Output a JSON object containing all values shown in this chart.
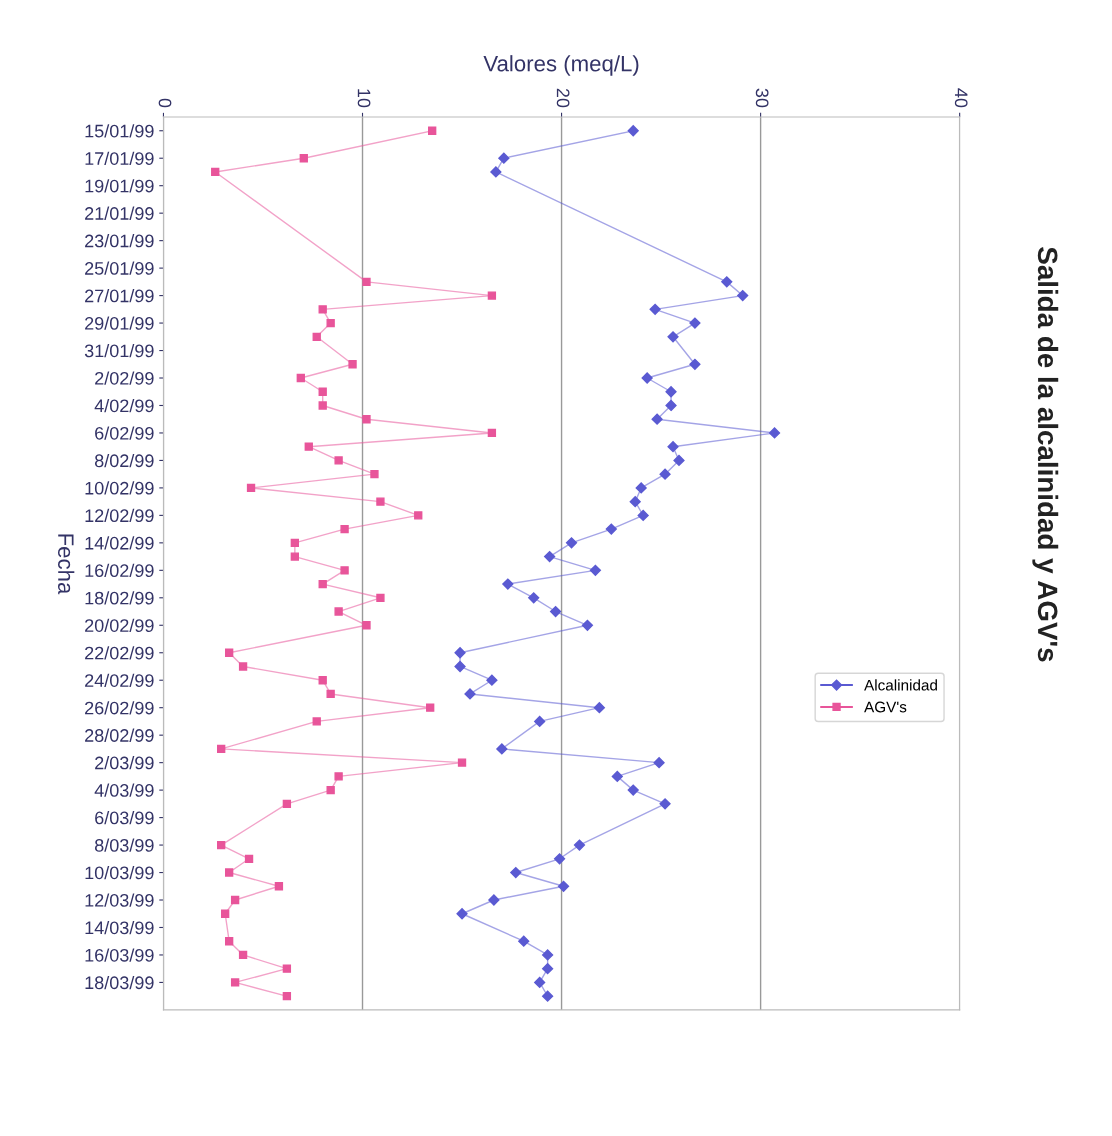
{
  "chart_data": {
    "type": "line",
    "orientation": "horizontal",
    "title": "Salida de la alcalinidad y AGV's",
    "xlabel": "Valores (meq/L)",
    "ylabel": "Fecha",
    "x": [
      "1999-01-15",
      "1999-01-17",
      "1999-01-18",
      "1999-01-26",
      "1999-01-27",
      "1999-01-28",
      "1999-01-29",
      "1999-01-30",
      "1999-02-01",
      "1999-02-02",
      "1999-02-03",
      "1999-02-04",
      "1999-02-05",
      "1999-02-06",
      "1999-02-07",
      "1999-02-08",
      "1999-02-09",
      "1999-02-10",
      "1999-02-11",
      "1999-02-12",
      "1999-02-13",
      "1999-02-14",
      "1999-02-15",
      "1999-02-16",
      "1999-02-17",
      "1999-02-18",
      "1999-02-19",
      "1999-02-20",
      "1999-02-22",
      "1999-02-23",
      "1999-02-24",
      "1999-02-25",
      "1999-02-26",
      "1999-02-27",
      "1999-03-01",
      "1999-03-02",
      "1999-03-03",
      "1999-03-04",
      "1999-03-05",
      "1999-03-08",
      "1999-03-09",
      "1999-03-10",
      "1999-03-11",
      "1999-03-12",
      "1999-03-13",
      "1999-03-15",
      "1999-03-16",
      "1999-03-17",
      "1999-03-18",
      "1999-03-19"
    ],
    "series": [
      {
        "name": "Alcalinidad",
        "color": "#5a5ad2",
        "marker": "diamond",
        "values": [
          23.6,
          17.1,
          16.7,
          28.3,
          29.1,
          24.7,
          26.7,
          25.6,
          26.7,
          24.3,
          25.5,
          25.5,
          24.8,
          30.7,
          25.6,
          25.9,
          25.2,
          24.0,
          23.7,
          24.1,
          22.5,
          20.5,
          19.4,
          21.7,
          17.3,
          18.6,
          19.7,
          21.3,
          14.9,
          14.9,
          16.5,
          15.4,
          21.9,
          18.9,
          17.0,
          24.9,
          22.8,
          23.6,
          25.2,
          20.9,
          19.9,
          17.7,
          20.1,
          16.6,
          15.0,
          18.1,
          19.3,
          19.3,
          18.9,
          19.3
        ]
      },
      {
        "name": "AGV's",
        "color": "#e8559a",
        "marker": "square",
        "values": [
          13.5,
          7.05,
          2.6,
          10.2,
          16.5,
          8.0,
          8.4,
          7.7,
          9.5,
          6.9,
          8.0,
          8.0,
          10.2,
          16.5,
          7.3,
          8.8,
          10.6,
          4.4,
          10.9,
          12.8,
          9.1,
          6.6,
          6.6,
          9.1,
          8.0,
          10.9,
          8.8,
          10.2,
          3.3,
          4.0,
          8.0,
          8.4,
          13.4,
          7.7,
          2.9,
          15.0,
          8.8,
          8.4,
          6.2,
          2.9,
          4.3,
          3.3,
          5.8,
          3.6,
          3.1,
          3.3,
          4.0,
          6.2,
          3.6,
          6.2
        ]
      }
    ],
    "xlim": [
      0,
      40
    ],
    "xticks": [
      0,
      10,
      20,
      30,
      40
    ],
    "ylim": [
      "1999-03-20",
      "1999-01-14"
    ],
    "yticks": [
      {
        "value": "1999-01-15",
        "label": "15/01/99"
      },
      {
        "value": "1999-01-17",
        "label": "17/01/99"
      },
      {
        "value": "1999-01-19",
        "label": "19/01/99"
      },
      {
        "value": "1999-01-21",
        "label": "21/01/99"
      },
      {
        "value": "1999-01-23",
        "label": "23/01/99"
      },
      {
        "value": "1999-01-25",
        "label": "25/01/99"
      },
      {
        "value": "1999-01-27",
        "label": "27/01/99"
      },
      {
        "value": "1999-01-29",
        "label": "29/01/99"
      },
      {
        "value": "1999-01-31",
        "label": "31/01/99"
      },
      {
        "value": "1999-02-02",
        "label": "2/02/99"
      },
      {
        "value": "1999-02-04",
        "label": "4/02/99"
      },
      {
        "value": "1999-02-06",
        "label": "6/02/99"
      },
      {
        "value": "1999-02-08",
        "label": "8/02/99"
      },
      {
        "value": "1999-02-10",
        "label": "10/02/99"
      },
      {
        "value": "1999-02-12",
        "label": "12/02/99"
      },
      {
        "value": "1999-02-14",
        "label": "14/02/99"
      },
      {
        "value": "1999-02-16",
        "label": "16/02/99"
      },
      {
        "value": "1999-02-18",
        "label": "18/02/99"
      },
      {
        "value": "1999-02-20",
        "label": "20/02/99"
      },
      {
        "value": "1999-02-22",
        "label": "22/02/99"
      },
      {
        "value": "1999-02-24",
        "label": "24/02/99"
      },
      {
        "value": "1999-02-26",
        "label": "26/02/99"
      },
      {
        "value": "1999-02-28",
        "label": "28/02/99"
      },
      {
        "value": "1999-03-02",
        "label": "2/03/99"
      },
      {
        "value": "1999-03-04",
        "label": "4/03/99"
      },
      {
        "value": "1999-03-06",
        "label": "6/03/99"
      },
      {
        "value": "1999-03-08",
        "label": "8/03/99"
      },
      {
        "value": "1999-03-10",
        "label": "10/03/99"
      },
      {
        "value": "1999-03-12",
        "label": "12/03/99"
      },
      {
        "value": "1999-03-14",
        "label": "14/03/99"
      },
      {
        "value": "1999-03-16",
        "label": "16/03/99"
      },
      {
        "value": "1999-03-18",
        "label": "18/03/99"
      }
    ],
    "grid": "x",
    "legend": "right",
    "line_style": "solid"
  }
}
